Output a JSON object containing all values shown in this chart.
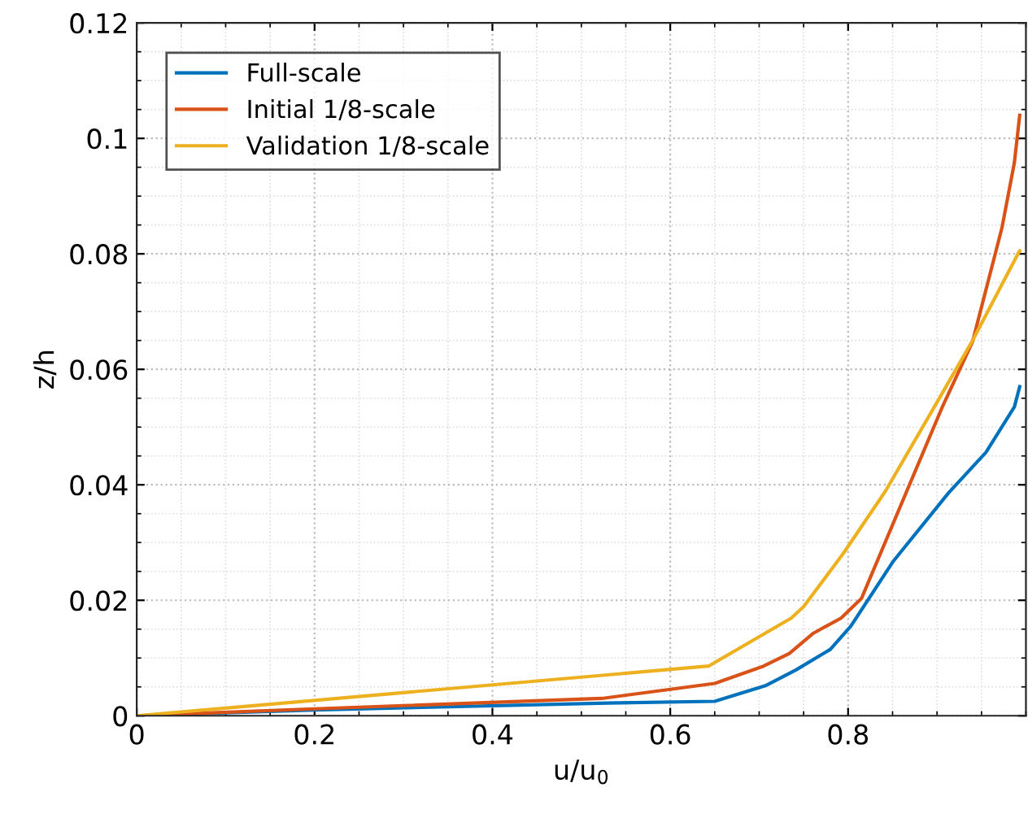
{
  "chart_data": {
    "type": "line",
    "xlabel": "u/u$_{0}$",
    "ylabel": "z/h",
    "xlim": [
      0,
      1
    ],
    "xticks": [
      0,
      0.2,
      0.4,
      0.6,
      0.8
    ],
    "ylim": [
      0,
      0.12
    ],
    "yticks": [
      0,
      0.02,
      0.04,
      0.06,
      0.08,
      0.1,
      0.12
    ],
    "grid": true,
    "legend": "top left",
    "series": [
      {
        "name": "Full-scale",
        "color": "#0072bd",
        "x": [
          0,
          0.2,
          0.53,
          0.65,
          0.707,
          0.741,
          0.78,
          0.803,
          0.851,
          0.913,
          0.955,
          0.987,
          0.993
        ],
        "values": [
          0,
          0.001,
          0.0022,
          0.0025,
          0.0052,
          0.0079,
          0.0115,
          0.0155,
          0.0268,
          0.0386,
          0.0456,
          0.0535,
          0.057
        ]
      },
      {
        "name": "Initial 1/8-scale",
        "color": "#d95319",
        "x": [
          0,
          0.2,
          0.523,
          0.65,
          0.705,
          0.734,
          0.761,
          0.792,
          0.815,
          0.906,
          0.94,
          0.973,
          0.987,
          0.993
        ],
        "values": [
          0,
          0.0012,
          0.003,
          0.0056,
          0.0086,
          0.0108,
          0.0143,
          0.0169,
          0.0203,
          0.0535,
          0.0648,
          0.0845,
          0.0958,
          0.104
        ]
      },
      {
        "name": "Validation 1/8-scale",
        "color": "#edb120",
        "x": [
          0,
          0.643,
          0.736,
          0.75,
          0.795,
          0.842,
          0.897,
          0.94,
          0.991,
          0.993
        ],
        "values": [
          0,
          0.0086,
          0.0169,
          0.0189,
          0.0282,
          0.0389,
          0.0535,
          0.065,
          0.08,
          0.0805
        ]
      }
    ]
  }
}
